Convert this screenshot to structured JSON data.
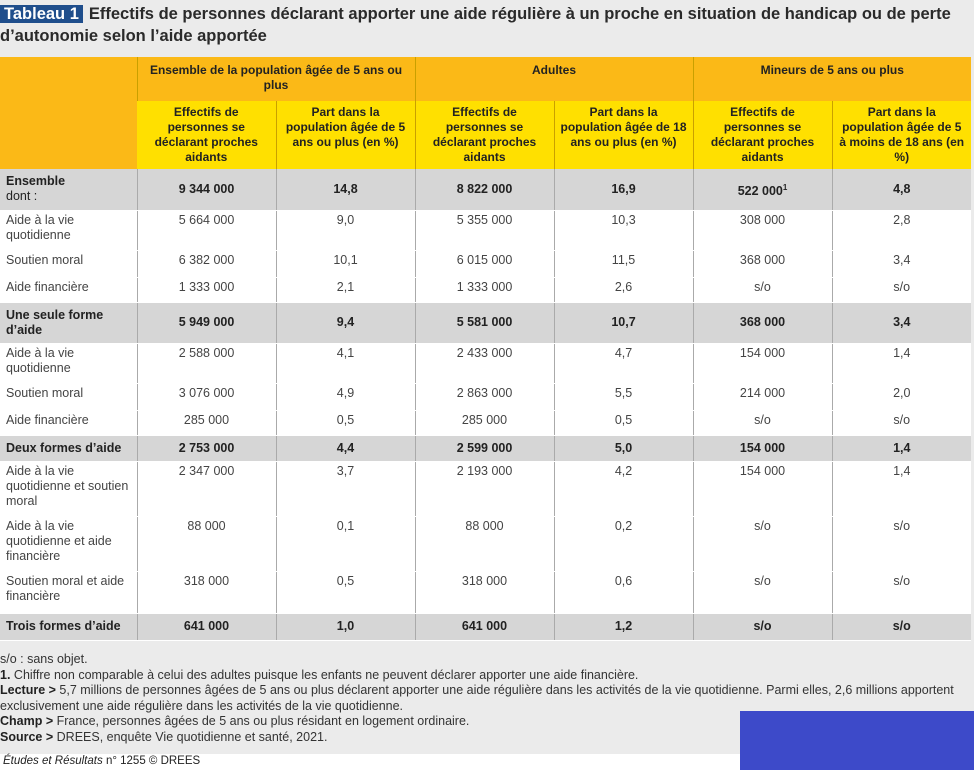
{
  "title": {
    "tag": "Tableau 1",
    "text": "Effectifs de personnes déclarant apporter une aide régulière à un proche en situation de handicap ou de perte d’autonomie selon l’aide apportée"
  },
  "groups": [
    "Ensemble de la population âgée de 5 ans ou plus",
    "Adultes",
    "Mineurs de 5 ans ou plus"
  ],
  "subheaders": [
    "Effectifs de personnes se déclarant proches aidants",
    "Part dans la population âgée de 5 ans ou plus (en %)",
    "Effectifs de personnes se déclarant proches aidants",
    "Part dans la population âgée de 18 ans ou plus (en %)",
    "Effectifs de personnes se déclarant proches aidants",
    "Part dans la population âgée de 5 à moins de 18 ans (en %)"
  ],
  "rows": [
    {
      "label": "Ensemble",
      "sub": "dont :",
      "bold": true,
      "cells": [
        "9 344 000",
        "14,8",
        "8 822 000",
        "16,9",
        "522 000",
        "4,8"
      ],
      "note": "1"
    },
    {
      "label": "Aide à la vie quotidienne",
      "cells": [
        "5 664 000",
        "9,0",
        "5 355 000",
        "10,3",
        "308 000",
        "2,8"
      ]
    },
    {
      "label": "Soutien moral",
      "cells": [
        "6 382 000",
        "10,1",
        "6 015 000",
        "11,5",
        "368 000",
        "3,4"
      ]
    },
    {
      "label": "Aide financière",
      "cells": [
        "1 333 000",
        "2,1",
        "1 333 000",
        "2,6",
        "s/o",
        "s/o"
      ]
    },
    {
      "label": "Une seule forme d’aide",
      "bold": true,
      "cells": [
        "5 949 000",
        "9,4",
        "5 581 000",
        "10,7",
        "368 000",
        "3,4"
      ]
    },
    {
      "label": "Aide à la vie quotidienne",
      "cells": [
        "2 588 000",
        "4,1",
        "2 433 000",
        "4,7",
        "154 000",
        "1,4"
      ]
    },
    {
      "label": "Soutien moral",
      "cells": [
        "3 076 000",
        "4,9",
        "2 863 000",
        "5,5",
        "214 000",
        "2,0"
      ]
    },
    {
      "label": "Aide financière",
      "cells": [
        "285 000",
        "0,5",
        "285 000",
        "0,5",
        "s/o",
        "s/o"
      ]
    },
    {
      "label": "Deux formes d’aide",
      "bold": true,
      "cells": [
        "2 753 000",
        "4,4",
        "2 599 000",
        "5,0",
        "154 000",
        "1,4"
      ]
    },
    {
      "label": "Aide à la vie quotidienne et soutien moral",
      "cells": [
        "2 347 000",
        "3,7",
        "2 193 000",
        "4,2",
        "154 000",
        "1,4"
      ]
    },
    {
      "label": "Aide à la vie quotidienne et aide financière",
      "cells": [
        "88 000",
        "0,1",
        "88 000",
        "0,2",
        "s/o",
        "s/o"
      ]
    },
    {
      "label": "Soutien moral et aide financière",
      "cells": [
        "318 000",
        "0,5",
        "318 000",
        "0,6",
        "s/o",
        "s/o"
      ]
    },
    {
      "label": "Trois formes d’aide",
      "bold": true,
      "cells": [
        "641 000",
        "1,0",
        "641 000",
        "1,2",
        "s/o",
        "s/o"
      ]
    }
  ],
  "notes": {
    "so": "s/o : sans objet.",
    "n1_label": "1.",
    "n1": "Chiffre non comparable à celui des adultes puisque les enfants ne peuvent déclarer apporter une aide financière.",
    "lecture_label": "Lecture >",
    "lecture": "5,7 millions de personnes âgées de 5 ans ou plus déclarent apporter une aide régulière dans les activités de la vie quotidienne. Parmi elles, 2,6 millions apportent exclusivement une aide régulière dans les activités de la vie quotidienne.",
    "champ_label": "Champ >",
    "champ": "France, personnes âgées de 5 ans ou plus résidant en logement ordinaire.",
    "source_label": "Source >",
    "source": "DREES, enquête Vie quotidienne et santé, 2021."
  },
  "credit": {
    "pub": "Études et Résultats",
    "rest": "n° 1255 © DREES"
  }
}
